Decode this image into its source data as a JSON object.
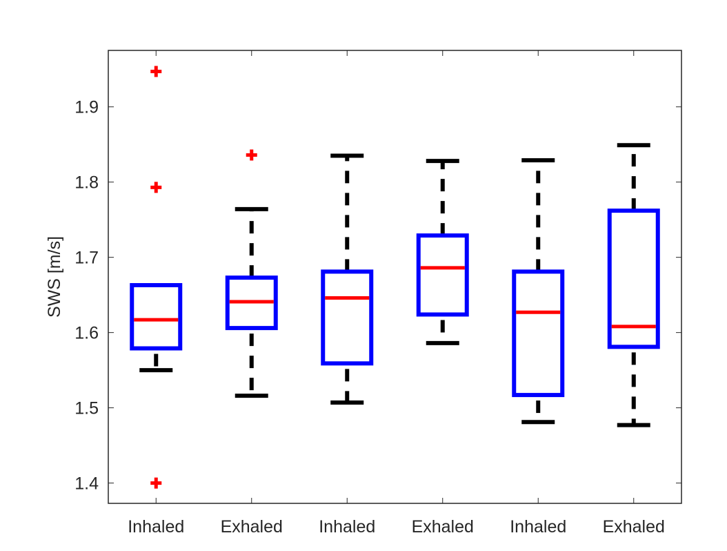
{
  "chart_data": {
    "type": "box",
    "title": "",
    "xlabel": "",
    "ylabel": "SWS [m/s]",
    "ylim": [
      1.373,
      1.975
    ],
    "yticks": [
      1.4,
      1.5,
      1.6,
      1.7,
      1.8,
      1.9
    ],
    "ytick_labels": [
      "1.4",
      "1.5",
      "1.6",
      "1.7",
      "1.8",
      "1.9"
    ],
    "categories": [
      "Inhaled",
      "Exhaled",
      "Inhaled",
      "Exhaled",
      "Inhaled",
      "Exhaled"
    ],
    "grid": false,
    "colors": {
      "box": "#0000ff",
      "median": "#ff0000",
      "whisker": "#000000",
      "outlier": "#ff0000",
      "axis": "#262626"
    },
    "boxes": [
      {
        "whisker_low": 1.55,
        "q1": 1.579,
        "median": 1.617,
        "q3": 1.663,
        "whisker_high": 1.663,
        "outliers": [
          1.947,
          1.793,
          1.4
        ]
      },
      {
        "whisker_low": 1.516,
        "q1": 1.606,
        "median": 1.641,
        "q3": 1.673,
        "whisker_high": 1.764,
        "outliers": [
          1.836
        ]
      },
      {
        "whisker_low": 1.507,
        "q1": 1.559,
        "median": 1.646,
        "q3": 1.681,
        "whisker_high": 1.835,
        "outliers": []
      },
      {
        "whisker_low": 1.586,
        "q1": 1.624,
        "median": 1.686,
        "q3": 1.729,
        "whisker_high": 1.828,
        "outliers": []
      },
      {
        "whisker_low": 1.481,
        "q1": 1.517,
        "median": 1.627,
        "q3": 1.681,
        "whisker_high": 1.829,
        "outliers": []
      },
      {
        "whisker_low": 1.477,
        "q1": 1.581,
        "median": 1.608,
        "q3": 1.762,
        "whisker_high": 1.849,
        "outliers": []
      }
    ]
  }
}
